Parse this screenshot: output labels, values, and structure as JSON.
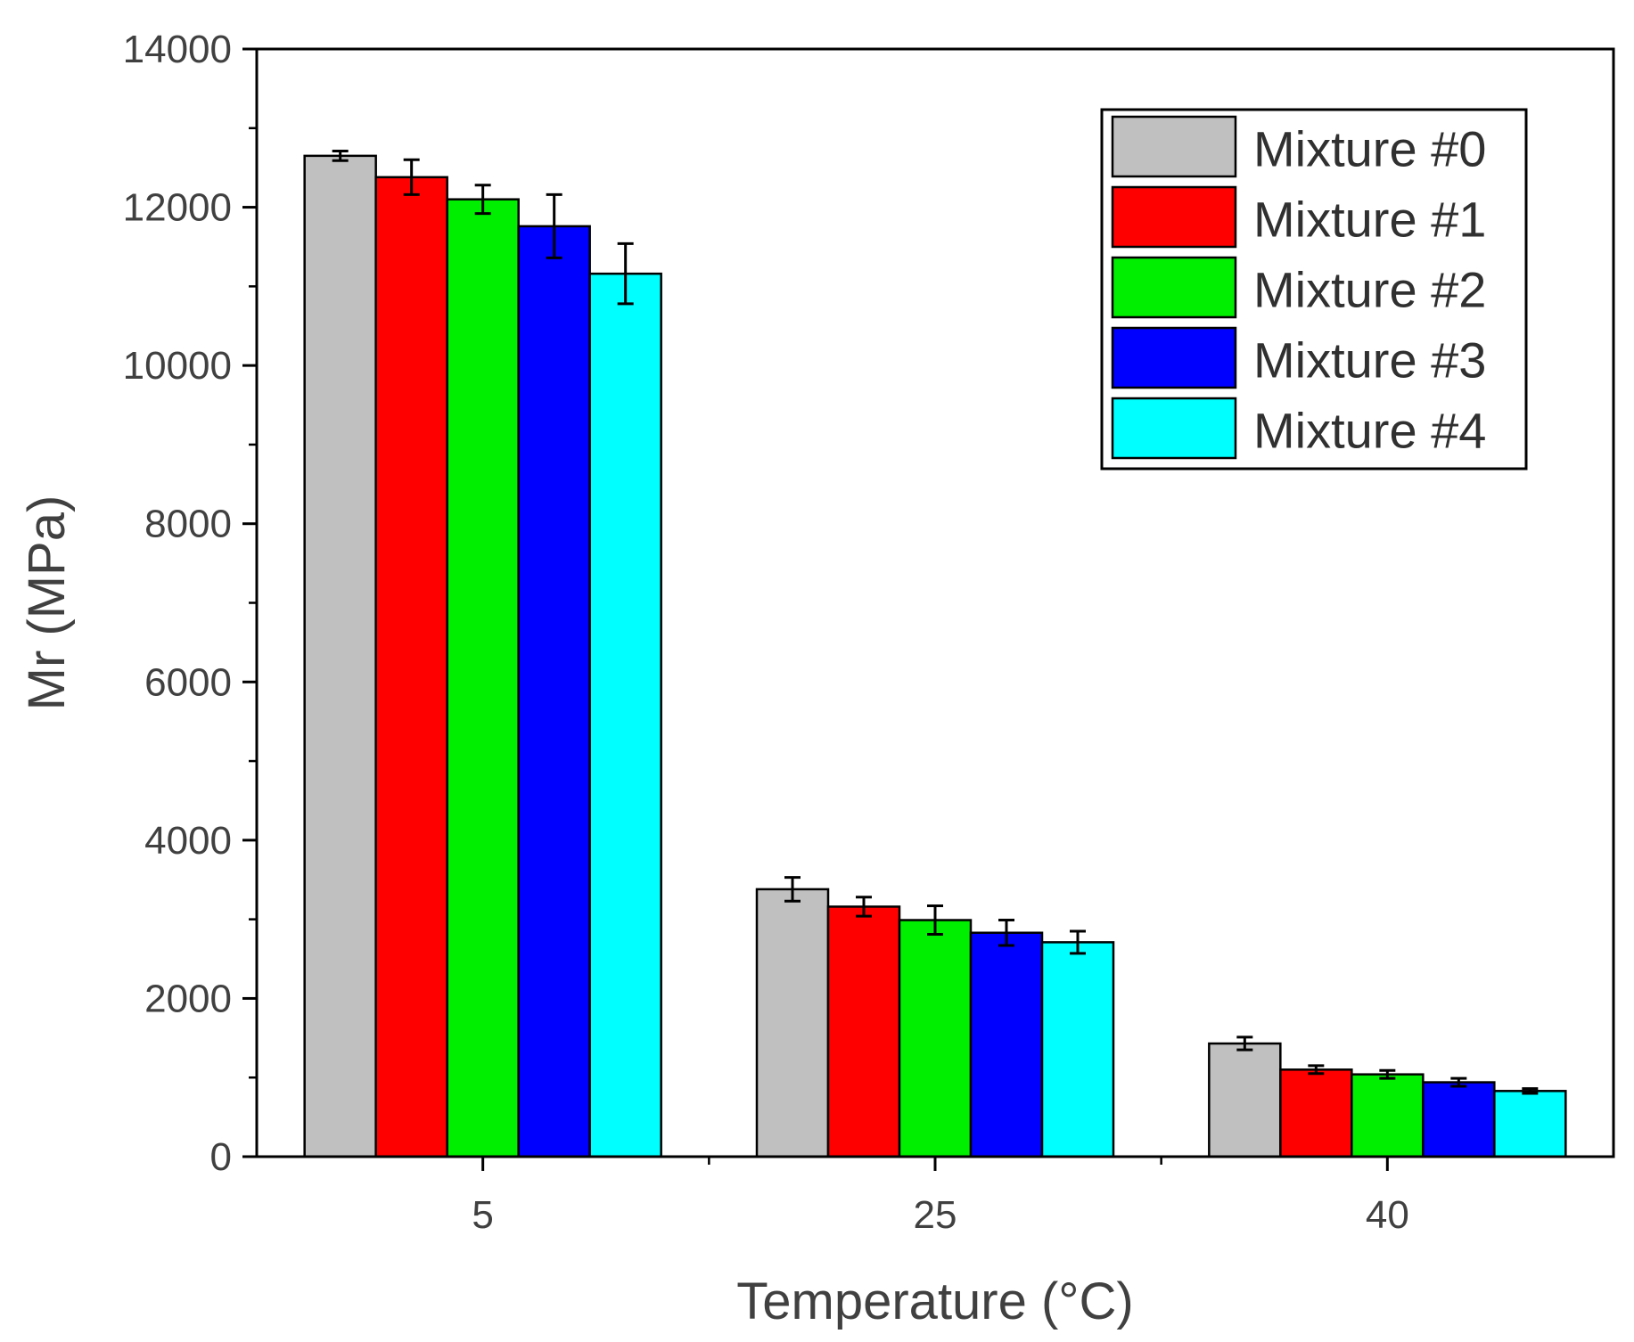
{
  "chart_data": {
    "type": "bar",
    "title": "",
    "xlabel": "Temperature (°C)",
    "ylabel": "Mr (MPa)",
    "categories": [
      "5",
      "25",
      "40"
    ],
    "ylim": [
      0,
      14000
    ],
    "yticks": [
      "0",
      "2000",
      "4000",
      "6000",
      "8000",
      "10000",
      "12000",
      "14000"
    ],
    "grid": false,
    "legend_position": "top-right",
    "series": [
      {
        "name": "Mixture #0",
        "color": "#c0c0c0",
        "values": [
          12650,
          3380,
          1430
        ],
        "errors": [
          60,
          150,
          80
        ]
      },
      {
        "name": "Mixture #1",
        "color": "#ff0000",
        "values": [
          12380,
          3160,
          1100
        ],
        "errors": [
          220,
          120,
          50
        ]
      },
      {
        "name": "Mixture #2",
        "color": "#00ee00",
        "values": [
          12100,
          2990,
          1040
        ],
        "errors": [
          180,
          180,
          50
        ]
      },
      {
        "name": "Mixture #3",
        "color": "#0000ff",
        "values": [
          11760,
          2830,
          940
        ],
        "errors": [
          400,
          160,
          50
        ]
      },
      {
        "name": "Mixture #4",
        "color": "#00ffff",
        "values": [
          11160,
          2710,
          830
        ],
        "errors": [
          380,
          140,
          30
        ]
      }
    ]
  }
}
